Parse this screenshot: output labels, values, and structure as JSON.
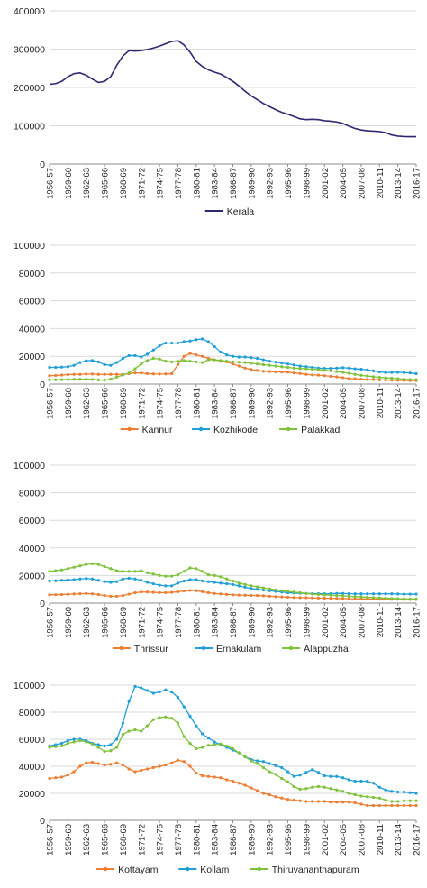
{
  "categories": [
    "1956-57",
    "1957-58",
    "1958-59",
    "1959-60",
    "1960-61",
    "1961-62",
    "1962-63",
    "1963-64",
    "1964-65",
    "1965-66",
    "1966-67",
    "1967-68",
    "1968-69",
    "1969-70",
    "1970-71",
    "1971-72",
    "1972-73",
    "1973-74",
    "1974-75",
    "1975-76",
    "1976-77",
    "1977-78",
    "1978-79",
    "1979-80",
    "1980-81",
    "1981-82",
    "1982-83",
    "1983-84",
    "1984-85",
    "1985-86",
    "1986-87",
    "1987-88",
    "1988-89",
    "1989-90",
    "1990-91",
    "1991-92",
    "1992-93",
    "1993-94",
    "1994-95",
    "1995-96",
    "1996-97",
    "1997-98",
    "1998-99",
    "1999-00",
    "2000-01",
    "2001-02",
    "2002-03",
    "2003-04",
    "2004-05",
    "2005-06",
    "2006-07",
    "2007-08",
    "2008-09",
    "2009-10",
    "2010-11",
    "2011-12",
    "2012-13",
    "2013-14",
    "2014-15",
    "2015-16",
    "2016-17"
  ],
  "tick_labels": [
    "1956-57",
    "1959-60",
    "1962-63",
    "1965-66",
    "1968-69",
    "1971-72",
    "1974-75",
    "1977-78",
    "1980-81",
    "1983-84",
    "1986-87",
    "1989-90",
    "1992-93",
    "1995-96",
    "1998-99",
    "2001-02",
    "2004-05",
    "2007-08",
    "2010-11",
    "2013-14",
    "2016-17"
  ],
  "chart_data": [
    {
      "type": "line",
      "ylim": [
        0,
        400000
      ],
      "yticks": [
        0,
        100000,
        200000,
        300000,
        400000
      ],
      "markers": false,
      "series": [
        {
          "name": "Kerala",
          "color": "#2e2872",
          "values": [
            208000,
            210000,
            216000,
            228000,
            236000,
            238000,
            232000,
            222000,
            213000,
            216000,
            228000,
            258000,
            282000,
            296000,
            295000,
            296000,
            299000,
            303000,
            308000,
            314000,
            320000,
            322000,
            311000,
            292000,
            268000,
            255000,
            246000,
            240000,
            235000,
            226000,
            216000,
            204000,
            190000,
            178000,
            168000,
            158000,
            150000,
            142000,
            135000,
            130000,
            124000,
            118000,
            116000,
            117000,
            116000,
            113000,
            112000,
            110000,
            106000,
            99000,
            93000,
            89000,
            87000,
            86000,
            85000,
            82000,
            76000,
            73000,
            72000,
            71500,
            71500
          ]
        }
      ]
    },
    {
      "type": "line",
      "ylim": [
        0,
        100000
      ],
      "yticks": [
        0,
        20000,
        40000,
        60000,
        80000,
        100000
      ],
      "markers": true,
      "series": [
        {
          "name": "Kannur",
          "color": "#ed7d31",
          "values": [
            6000,
            6200,
            6500,
            6800,
            7000,
            7000,
            7200,
            7200,
            7000,
            7000,
            7000,
            7000,
            7000,
            7500,
            8000,
            8000,
            7500,
            7300,
            7200,
            7300,
            7500,
            14000,
            20000,
            22000,
            21000,
            20000,
            18500,
            17500,
            16500,
            16000,
            14500,
            13000,
            11500,
            10500,
            9800,
            9200,
            9000,
            8800,
            8700,
            8600,
            8000,
            7600,
            7000,
            6600,
            6400,
            6000,
            5600,
            5200,
            4600,
            4000,
            3800,
            3500,
            3300,
            3200,
            3000,
            2900,
            2800,
            2700,
            2600,
            2550,
            2500
          ]
        },
        {
          "name": "Kozhikode",
          "color": "#1f9ed8",
          "values": [
            12000,
            12000,
            12200,
            12500,
            13500,
            15500,
            16800,
            17000,
            16000,
            14000,
            13500,
            15500,
            18500,
            20500,
            20500,
            19500,
            21500,
            24500,
            27500,
            29500,
            29500,
            29500,
            30500,
            31000,
            32000,
            32500,
            30500,
            27000,
            23000,
            21000,
            20000,
            19500,
            19500,
            19000,
            18500,
            17500,
            16500,
            15800,
            15200,
            14500,
            13800,
            13000,
            12500,
            12000,
            11500,
            11300,
            11300,
            11500,
            11800,
            11500,
            11000,
            10700,
            10200,
            9500,
            8800,
            8300,
            8400,
            8500,
            8300,
            8000,
            7500
          ]
        },
        {
          "name": "Palakkad",
          "color": "#7dc23a",
          "values": [
            3000,
            3100,
            3200,
            3300,
            3400,
            3500,
            3500,
            3300,
            3000,
            2800,
            3500,
            5000,
            6500,
            8000,
            11000,
            14500,
            17000,
            18500,
            18000,
            16500,
            16000,
            16500,
            17000,
            16500,
            16000,
            15500,
            17500,
            17500,
            17000,
            16500,
            16000,
            15800,
            15500,
            15000,
            14500,
            14000,
            13500,
            13000,
            12500,
            12000,
            11500,
            11200,
            11000,
            10700,
            10400,
            10000,
            9600,
            9000,
            8500,
            7800,
            7000,
            6300,
            5800,
            5300,
            4800,
            4500,
            4200,
            3800,
            3500,
            3300,
            3100
          ]
        }
      ]
    },
    {
      "type": "line",
      "ylim": [
        0,
        100000
      ],
      "yticks": [
        0,
        20000,
        40000,
        60000,
        80000,
        100000
      ],
      "markers": true,
      "series": [
        {
          "name": "Thrissur",
          "color": "#ed7d31",
          "values": [
            6000,
            6100,
            6200,
            6400,
            6600,
            6800,
            7000,
            6700,
            6200,
            5500,
            5000,
            5000,
            5500,
            6500,
            7500,
            8000,
            8000,
            7800,
            7600,
            7600,
            7800,
            8200,
            8800,
            9200,
            9000,
            8300,
            7500,
            7000,
            6600,
            6300,
            6000,
            5800,
            5700,
            5600,
            5500,
            5300,
            5000,
            4700,
            4500,
            4300,
            4100,
            4000,
            3900,
            3800,
            3700,
            3600,
            3500,
            3400,
            3300,
            3200,
            3100,
            3050,
            3000,
            2950,
            2900,
            2850,
            2800,
            2750,
            2700,
            2700,
            2700
          ]
        },
        {
          "name": "Ernakulam",
          "color": "#1f9ed8",
          "values": [
            16000,
            16200,
            16500,
            16800,
            17000,
            17500,
            17800,
            17500,
            16500,
            15500,
            15000,
            15500,
            17500,
            18000,
            17500,
            16500,
            15000,
            14000,
            13000,
            12500,
            12500,
            14500,
            16000,
            17000,
            17000,
            16000,
            15500,
            15000,
            14500,
            14000,
            13500,
            12500,
            11500,
            10500,
            10000,
            9500,
            9000,
            8500,
            8000,
            7500,
            7300,
            7100,
            7000,
            6900,
            6800,
            6800,
            6800,
            7000,
            7000,
            6800,
            6700,
            6700,
            6700,
            6700,
            6700,
            6700,
            6700,
            6600,
            6500,
            6500,
            6500
          ]
        },
        {
          "name": "Alappuzha",
          "color": "#7dc23a",
          "values": [
            23000,
            23500,
            24000,
            25000,
            26000,
            27000,
            28000,
            28500,
            28000,
            26500,
            25000,
            23500,
            23000,
            23000,
            23000,
            23500,
            22000,
            21000,
            20000,
            19500,
            19500,
            20500,
            23000,
            25500,
            25000,
            23000,
            20500,
            20000,
            19000,
            17500,
            16000,
            14500,
            13500,
            12500,
            11800,
            11000,
            10300,
            9600,
            9000,
            8500,
            8000,
            7500,
            7000,
            6500,
            6300,
            6000,
            5800,
            5500,
            5300,
            5000,
            4700,
            4500,
            4200,
            4000,
            3800,
            3600,
            3400,
            3200,
            3100,
            3000,
            3000
          ]
        }
      ]
    },
    {
      "type": "line",
      "ylim": [
        0,
        100000
      ],
      "yticks": [
        0,
        20000,
        40000,
        60000,
        80000,
        100000
      ],
      "markers": true,
      "series": [
        {
          "name": "Kottayam",
          "color": "#ed7d31",
          "values": [
            31000,
            31500,
            32000,
            33500,
            36000,
            40000,
            42500,
            43000,
            42000,
            41000,
            41500,
            42500,
            41000,
            38000,
            36000,
            37000,
            38000,
            39000,
            40000,
            41000,
            42500,
            44500,
            43500,
            40000,
            35000,
            33000,
            32500,
            32000,
            31500,
            30000,
            29000,
            27500,
            26000,
            24000,
            22000,
            20000,
            19000,
            17500,
            16500,
            15500,
            15000,
            14500,
            14000,
            14000,
            14000,
            14000,
            13500,
            13500,
            13500,
            13500,
            13000,
            12000,
            11000,
            11000,
            11000,
            11000,
            11000,
            11000,
            11000,
            11000,
            11000
          ]
        },
        {
          "name": "Kollam",
          "color": "#1f9ed8",
          "values": [
            55000,
            56000,
            57000,
            59000,
            60000,
            60000,
            59000,
            57000,
            56000,
            55000,
            56000,
            60000,
            72000,
            88000,
            99000,
            98000,
            96000,
            94000,
            95000,
            96500,
            95000,
            91000,
            84000,
            77000,
            70000,
            64000,
            61000,
            58000,
            56000,
            54000,
            52000,
            50000,
            47000,
            45000,
            44000,
            43500,
            42000,
            40500,
            39000,
            36000,
            32500,
            33500,
            35500,
            37500,
            35500,
            33000,
            32500,
            32500,
            31500,
            30000,
            29000,
            29000,
            29000,
            27500,
            24500,
            22500,
            21500,
            21000,
            21000,
            20500,
            20000
          ]
        },
        {
          "name": "Thiruvananthapuram",
          "color": "#7dc23a",
          "values": [
            54000,
            54500,
            55000,
            57000,
            58000,
            59000,
            58000,
            56500,
            54000,
            51000,
            51500,
            54000,
            63500,
            66000,
            67000,
            66000,
            70000,
            74500,
            76000,
            76500,
            75500,
            72000,
            62000,
            57000,
            53000,
            54000,
            55500,
            56000,
            56500,
            55000,
            53000,
            50000,
            47000,
            44000,
            42000,
            39000,
            36000,
            34000,
            31000,
            28500,
            25000,
            23000,
            23500,
            24500,
            25000,
            24500,
            23500,
            22500,
            21500,
            20000,
            19000,
            18000,
            17500,
            17000,
            16500,
            15000,
            14000,
            14000,
            14500,
            14500,
            14500
          ]
        }
      ]
    }
  ]
}
